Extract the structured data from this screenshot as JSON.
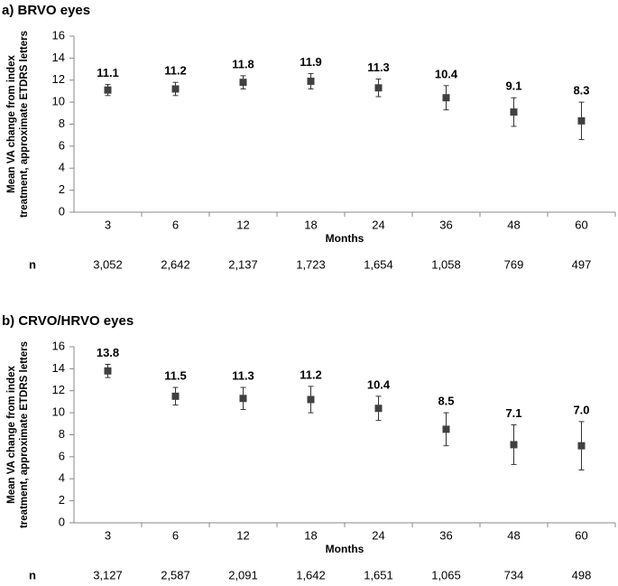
{
  "chart_data": [
    {
      "type": "scatter",
      "title": "a) BRVO eyes",
      "y_label": [
        "Mean VA change from index",
        "treatment, approximate ETDRS letters"
      ],
      "x_label": "Months",
      "categories": [
        "3",
        "6",
        "12",
        "18",
        "24",
        "36",
        "48",
        "60"
      ],
      "series": [
        {
          "color": "#404040",
          "values": [
            11.1,
            11.2,
            11.8,
            11.9,
            11.3,
            10.4,
            9.1,
            8.3
          ],
          "value_labels": [
            "11.1",
            "11.2",
            "11.8",
            "11.9",
            "11.3",
            "10.4",
            "9.1",
            "8.3"
          ],
          "errors": [
            0.5,
            0.6,
            0.6,
            0.7,
            0.8,
            1.1,
            1.3,
            1.7
          ]
        }
      ],
      "ylim": [
        0,
        16
      ],
      "yticks": [
        0,
        2,
        4,
        6,
        8,
        10,
        12,
        14,
        16
      ],
      "sample_size": {
        "label": "n",
        "values": [
          "3,052",
          "2,642",
          "2,137",
          "1,723",
          "1,654",
          "1,058",
          "769",
          "497"
        ]
      }
    },
    {
      "type": "scatter",
      "title": "b) CRVO/HRVO eyes",
      "y_label": [
        "Mean VA change from index",
        "treatment, approximate ETDRS letters"
      ],
      "x_label": "Months",
      "categories": [
        "3",
        "6",
        "12",
        "18",
        "24",
        "36",
        "48",
        "60"
      ],
      "series": [
        {
          "color": "#404040",
          "values": [
            13.8,
            11.5,
            11.3,
            11.2,
            10.4,
            8.5,
            7.1,
            7.0
          ],
          "value_labels": [
            "13.8",
            "11.5",
            "11.3",
            "11.2",
            "10.4",
            "8.5",
            "7.1",
            "7.0"
          ],
          "errors": [
            0.6,
            0.8,
            1.0,
            1.2,
            1.1,
            1.5,
            1.8,
            2.2
          ]
        }
      ],
      "ylim": [
        0,
        16
      ],
      "yticks": [
        0,
        2,
        4,
        6,
        8,
        10,
        12,
        14,
        16
      ],
      "sample_size": {
        "label": "n",
        "values": [
          "3,127",
          "2,587",
          "2,091",
          "1,642",
          "1,651",
          "1,065",
          "734",
          "498"
        ]
      }
    }
  ]
}
